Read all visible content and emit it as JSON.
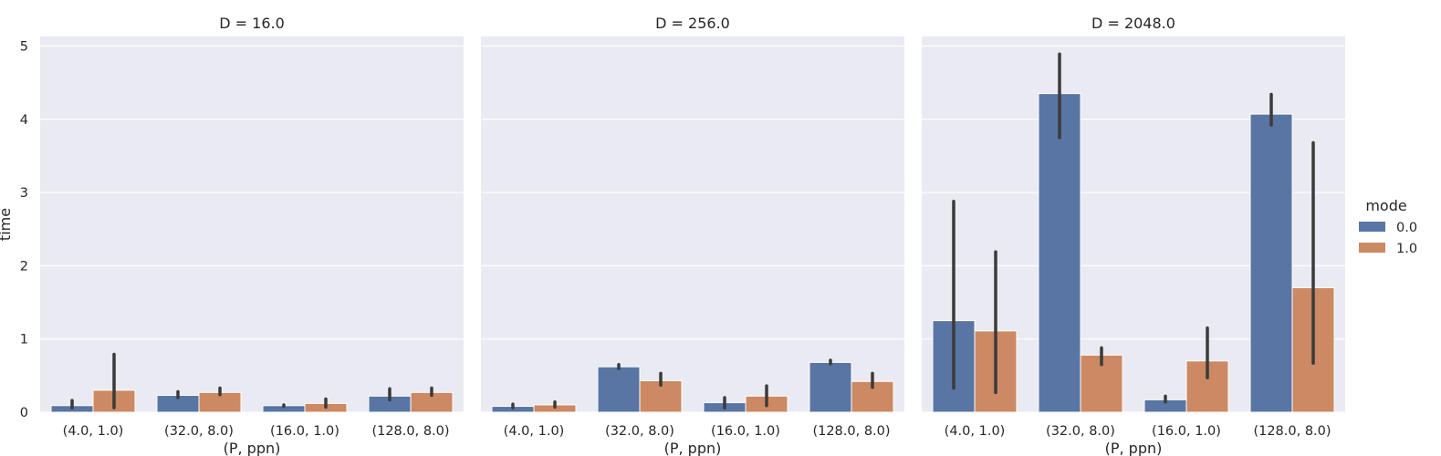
{
  "chart_data": {
    "type": "bar",
    "ylabel": "time",
    "xlabel": "(P, ppn)",
    "ylim": [
      0,
      5.13
    ],
    "yticks": [
      0,
      1,
      2,
      3,
      4,
      5
    ],
    "grid": true,
    "legend": {
      "title": "mode",
      "position": "right",
      "entries": [
        "0.0",
        "1.0"
      ]
    },
    "colors": {
      "0.0": "#5875a4",
      "1.0": "#cc8963",
      "background": "#eaeaf2",
      "grid": "#ffffff",
      "errorbar": "#3b3b3b"
    },
    "categories": [
      "(4.0, 1.0)",
      "(32.0, 8.0)",
      "(16.0, 1.0)",
      "(128.0, 8.0)"
    ],
    "panels": [
      {
        "title": "D = 16.0",
        "series": [
          {
            "name": "0.0",
            "values": [
              0.09,
              0.23,
              0.09,
              0.22
            ],
            "err_low": [
              0.06,
              0.2,
              0.08,
              0.17
            ],
            "err_high": [
              0.16,
              0.28,
              0.1,
              0.32
            ]
          },
          {
            "name": "1.0",
            "values": [
              0.3,
              0.27,
              0.12,
              0.27
            ],
            "err_low": [
              0.06,
              0.24,
              0.07,
              0.23
            ],
            "err_high": [
              0.79,
              0.33,
              0.18,
              0.33
            ]
          }
        ]
      },
      {
        "title": "D = 256.0",
        "series": [
          {
            "name": "0.0",
            "values": [
              0.08,
              0.62,
              0.13,
              0.68
            ],
            "err_low": [
              0.06,
              0.6,
              0.06,
              0.66
            ],
            "err_high": [
              0.11,
              0.65,
              0.2,
              0.71
            ]
          },
          {
            "name": "1.0",
            "values": [
              0.1,
              0.43,
              0.22,
              0.42
            ],
            "err_low": [
              0.07,
              0.37,
              0.09,
              0.34
            ],
            "err_high": [
              0.14,
              0.53,
              0.36,
              0.53
            ]
          }
        ]
      },
      {
        "title": "D = 2048.0",
        "series": [
          {
            "name": "0.0",
            "values": [
              1.25,
              4.35,
              0.17,
              4.07
            ],
            "err_low": [
              0.33,
              3.75,
              0.14,
              3.92
            ],
            "err_high": [
              2.88,
              4.89,
              0.22,
              4.34
            ]
          },
          {
            "name": "1.0",
            "values": [
              1.11,
              0.78,
              0.7,
              1.7
            ],
            "err_low": [
              0.27,
              0.65,
              0.47,
              0.67
            ],
            "err_high": [
              2.19,
              0.88,
              1.15,
              3.68
            ]
          }
        ]
      }
    ]
  }
}
